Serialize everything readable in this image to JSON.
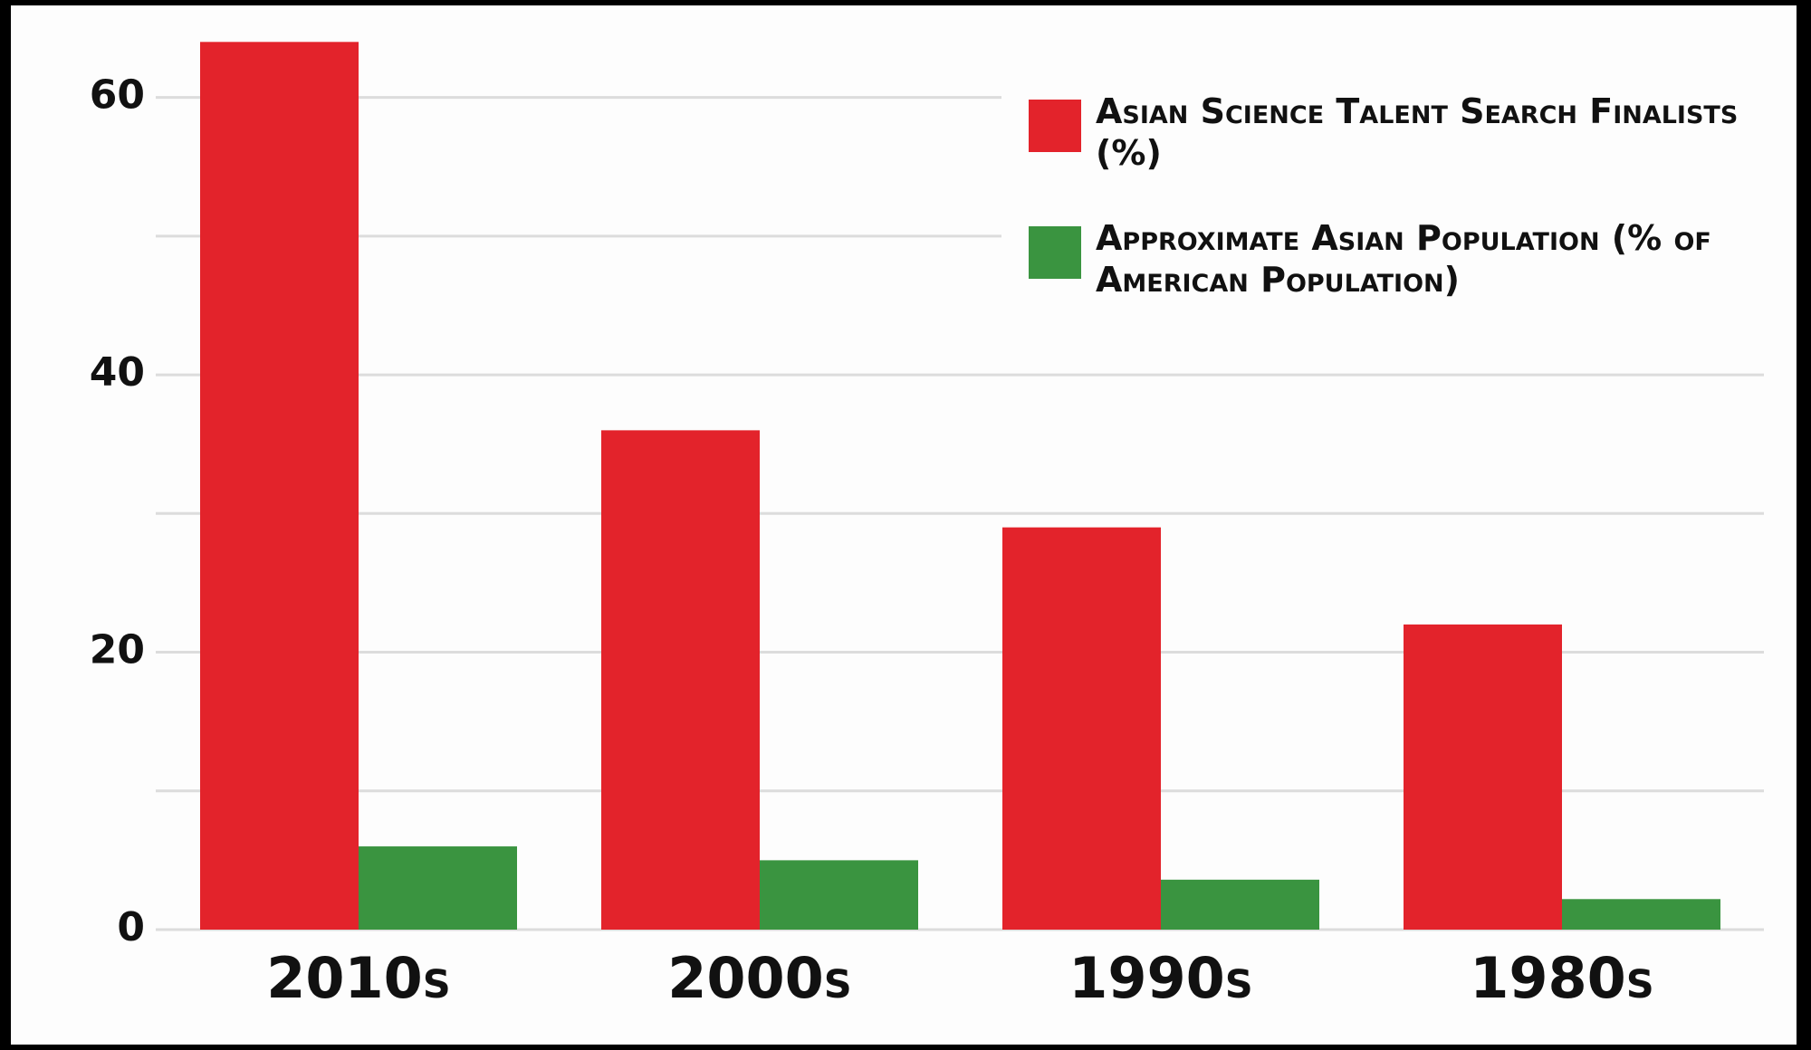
{
  "chart_data": {
    "type": "bar",
    "categories": [
      "2010s",
      "2000s",
      "1990s",
      "1980s"
    ],
    "series": [
      {
        "name": "Asian Science Talent Search Finalists (%)",
        "color": "#e3232b",
        "values": [
          64,
          36,
          29,
          22
        ]
      },
      {
        "name": "Approximate Asian Population (% of American Population)",
        "color": "#3a9440",
        "values": [
          6,
          5,
          3.6,
          2.2
        ]
      }
    ],
    "ylim": [
      0,
      65
    ],
    "yticks": [
      0,
      20,
      40,
      60
    ],
    "minor_yticks": [
      10,
      30,
      50
    ],
    "grid": true,
    "legend": "upper right"
  }
}
